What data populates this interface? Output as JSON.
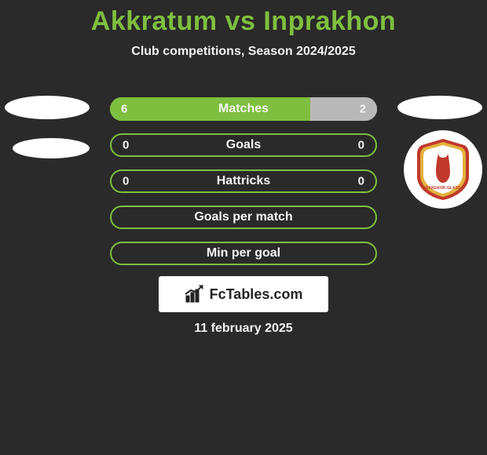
{
  "title_color": "#7fbf3f",
  "title_parts": {
    "left": "Akkratum",
    "vs": "vs",
    "right": "Inprakhon"
  },
  "subtitle": "Club competitions, Season 2024/2025",
  "bar_colors": {
    "left_fill": "#7fbf3f",
    "right_fill": "#b8b8b8",
    "empty_outline": "#7fbf3f",
    "empty_bg": "#2a2a2a"
  },
  "bars": [
    {
      "label": "Matches",
      "left": "6",
      "right": "2",
      "left_pct": 75,
      "right_pct": 25,
      "mode": "split"
    },
    {
      "label": "Goals",
      "left": "0",
      "right": "0",
      "mode": "outline"
    },
    {
      "label": "Hattricks",
      "left": "0",
      "right": "0",
      "mode": "outline"
    },
    {
      "label": "Goals per match",
      "left": "",
      "right": "",
      "mode": "outline"
    },
    {
      "label": "Min per goal",
      "left": "",
      "right": "",
      "mode": "outline"
    }
  ],
  "logos": {
    "left_ellipse_color": "#ffffff",
    "right_circle_bg": "#ffffff",
    "shield_outer": "#c0392b",
    "shield_inner": "#ffffff",
    "shield_trim": "#e2b13c",
    "shield_text": "BANGKOK GLASS"
  },
  "brand": {
    "text": "FcTables.com",
    "icon_color": "#222222"
  },
  "date": "11 february 2025"
}
